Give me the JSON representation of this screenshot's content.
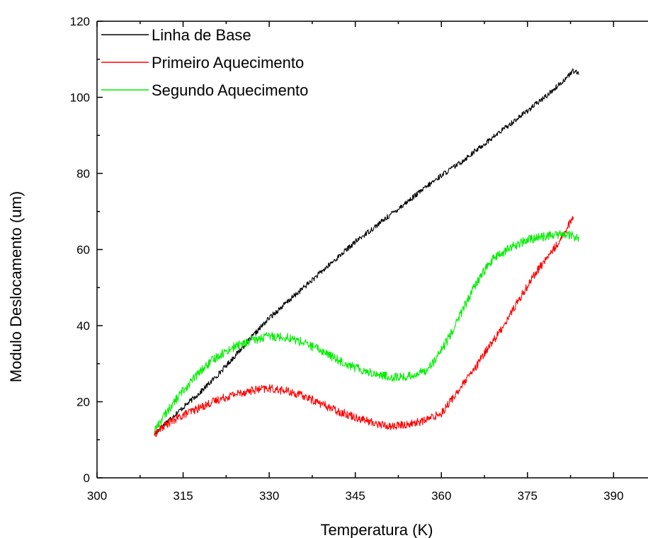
{
  "chart_data": {
    "type": "line",
    "title": "",
    "xlabel": "Temperatura (K)",
    "ylabel": "Modulo Deslocamento (um)",
    "xlim": [
      300,
      396
    ],
    "ylim": [
      0,
      120
    ],
    "xticks": [
      300,
      315,
      330,
      345,
      360,
      375,
      390
    ],
    "yticks": [
      0,
      20,
      40,
      60,
      80,
      100,
      120
    ],
    "grid": false,
    "legend_position": "top-left",
    "series": [
      {
        "name": "Linha de Base",
        "color": "#000000",
        "x": [
          310,
          312,
          315,
          318,
          321,
          324,
          327,
          330,
          333,
          336,
          339,
          342,
          345,
          348,
          351,
          354,
          357,
          360,
          363,
          366,
          369,
          372,
          375,
          378,
          381,
          383,
          384
        ],
        "y": [
          11.5,
          14.5,
          18.5,
          22.5,
          27.0,
          32.0,
          37.0,
          42.0,
          46.0,
          50.0,
          54.0,
          58.0,
          62.0,
          65.5,
          69.0,
          72.5,
          76.0,
          79.5,
          82.5,
          86.0,
          89.5,
          93.0,
          96.5,
          100.0,
          104.0,
          107.0,
          106.0
        ]
      },
      {
        "name": "Primeiro Aquecimento",
        "color": "#ff0000",
        "x": [
          310,
          312,
          315,
          318,
          321,
          324,
          327,
          330,
          333,
          336,
          339,
          342,
          345,
          348,
          351,
          354,
          357,
          360,
          362,
          364,
          366,
          368,
          370,
          372,
          374,
          376,
          378,
          380,
          382,
          383
        ],
        "y": [
          11.5,
          14.0,
          16.5,
          18.5,
          20.5,
          22.0,
          23.0,
          23.5,
          22.8,
          21.5,
          19.5,
          17.5,
          16.0,
          14.5,
          13.5,
          14.0,
          15.0,
          17.0,
          21.0,
          25.0,
          29.0,
          34.0,
          38.0,
          43.0,
          48.0,
          53.0,
          57.0,
          61.0,
          66.0,
          68.5
        ]
      },
      {
        "name": "Segundo Aquecimento",
        "color": "#00ee00",
        "x": [
          310,
          312,
          315,
          318,
          321,
          324,
          327,
          330,
          333,
          336,
          339,
          342,
          345,
          348,
          351,
          354,
          357,
          359,
          361,
          363,
          365,
          367,
          369,
          372,
          375,
          378,
          381,
          383,
          384
        ],
        "y": [
          12.5,
          17.0,
          23.0,
          28.0,
          32.0,
          34.5,
          36.0,
          37.3,
          37.0,
          35.5,
          33.5,
          31.0,
          29.0,
          27.5,
          26.5,
          26.5,
          28.0,
          31.0,
          36.0,
          42.0,
          48.0,
          53.5,
          57.5,
          60.5,
          62.5,
          63.5,
          64.0,
          63.5,
          63.0
        ]
      }
    ]
  }
}
